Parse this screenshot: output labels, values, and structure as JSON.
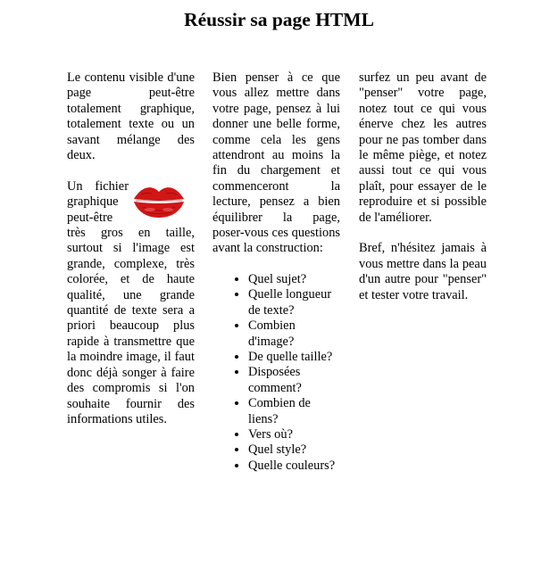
{
  "title": "Réussir sa page HTML",
  "column1": {
    "paragraphs": [
      "Le contenu visible d'une page peut-être totalement graphique, totalement texte ou un savant mélange des deux.",
      "Un fichier graphique peut-être très gros en taille, surtout si l'image est grande, complexe, très colorée, et de haute qualité, une grande quantité de texte sera a priori beaucoup plus rapide à transmettre que la moindre image, il faut donc déjà songer à faire des compromis si l'on souhaite fournir des informations utiles."
    ],
    "image_icon": "lips-kiss-icon",
    "image_color": "#d01616"
  },
  "column2": {
    "intro": "Bien penser à ce que vous allez mettre dans votre page, pensez à lui donner une belle forme, comme cela les gens attendront au moins la fin du chargement et commenceront la lecture, pensez a bien équilibrer la page, poser-vous ces questions avant la construction:",
    "questions": [
      "Quel sujet?",
      "Quelle longueur de texte?",
      "Combien d'image?",
      "De quelle taille?",
      "Disposées comment?",
      "Combien de liens?",
      "Vers où?",
      "Quel style?",
      "Quelle couleurs?"
    ]
  },
  "column3": {
    "paragraphs": [
      "surfez un peu avant de \"penser\" votre page, notez tout ce qui vous énerve chez les autres pour ne pas tomber dans le même piège, et notez aussi tout ce qui vous plaît, pour essayer de le reproduire et si possible de l'améliorer.",
      "Bref, n'hésitez jamais à vous mettre dans la peau d'un autre pour \"penser\" et tester votre travail."
    ]
  }
}
